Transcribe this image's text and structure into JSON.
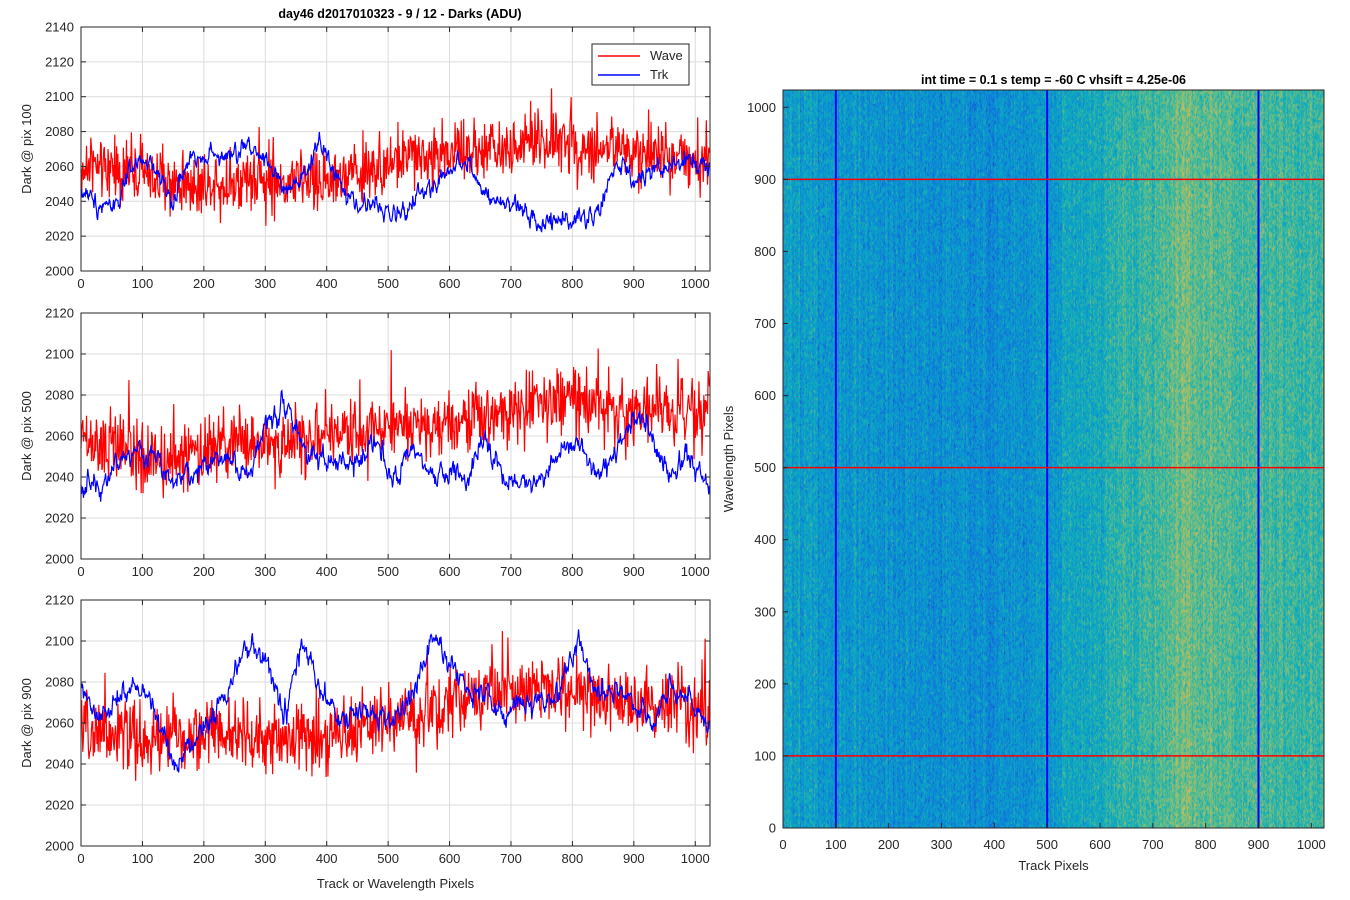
{
  "figure": {
    "title": "day46 d2017010323 - 9 / 12 - Darks (ADU)",
    "heatmap_title": "int time = 0.1 s   temp = -60 C   vhsift = 4.25e-06"
  },
  "chart_data": [
    {
      "type": "line",
      "title": "day46 d2017010323 - 9 / 12 - Darks (ADU)",
      "xlabel": "",
      "ylabel": "Dark @ pix 100",
      "xlim": [
        0,
        1024
      ],
      "ylim": [
        2000,
        2140
      ],
      "xticks": [
        0,
        100,
        200,
        300,
        400,
        500,
        600,
        700,
        800,
        900,
        1000
      ],
      "yticks": [
        2000,
        2020,
        2040,
        2060,
        2080,
        2100,
        2120,
        2140
      ],
      "grid": true,
      "legend_placement": "top-right",
      "series": [
        {
          "name": "Wave",
          "color": "#ff0000",
          "x": [
            0,
            50,
            100,
            150,
            200,
            250,
            300,
            350,
            400,
            450,
            500,
            550,
            600,
            650,
            700,
            750,
            800,
            850,
            900,
            950,
            1024
          ],
          "values": [
            2058,
            2060,
            2055,
            2050,
            2050,
            2052,
            2050,
            2052,
            2052,
            2055,
            2062,
            2066,
            2068,
            2068,
            2070,
            2074,
            2074,
            2070,
            2068,
            2068,
            2062
          ],
          "noise": 16
        },
        {
          "name": "Trk",
          "color": "#0000ff",
          "x": [
            0,
            30,
            60,
            90,
            120,
            150,
            180,
            210,
            240,
            270,
            300,
            330,
            360,
            390,
            420,
            450,
            480,
            510,
            540,
            570,
            600,
            630,
            660,
            690,
            720,
            750,
            780,
            810,
            840,
            870,
            900,
            930,
            960,
            990,
            1024
          ],
          "values": [
            2046,
            2038,
            2040,
            2062,
            2060,
            2040,
            2066,
            2068,
            2064,
            2072,
            2066,
            2045,
            2050,
            2075,
            2050,
            2036,
            2040,
            2030,
            2040,
            2048,
            2058,
            2065,
            2040,
            2038,
            2035,
            2028,
            2030,
            2032,
            2030,
            2062,
            2050,
            2058,
            2060,
            2065,
            2060
          ],
          "noise": 7
        }
      ]
    },
    {
      "type": "line",
      "xlabel": "",
      "ylabel": "Dark @ pix 500",
      "xlim": [
        0,
        1024
      ],
      "ylim": [
        2000,
        2120
      ],
      "xticks": [
        0,
        100,
        200,
        300,
        400,
        500,
        600,
        700,
        800,
        900,
        1000
      ],
      "yticks": [
        2000,
        2020,
        2040,
        2060,
        2080,
        2100,
        2120
      ],
      "grid": true,
      "series": [
        {
          "name": "Wave",
          "color": "#ff0000",
          "x": [
            0,
            50,
            100,
            150,
            200,
            250,
            300,
            350,
            400,
            450,
            500,
            550,
            600,
            650,
            700,
            750,
            800,
            850,
            900,
            950,
            1024
          ],
          "values": [
            2056,
            2054,
            2050,
            2048,
            2052,
            2056,
            2056,
            2058,
            2060,
            2062,
            2066,
            2066,
            2068,
            2070,
            2074,
            2076,
            2078,
            2074,
            2072,
            2072,
            2070
          ],
          "noise": 15
        },
        {
          "name": "Trk",
          "color": "#0000ff",
          "x": [
            0,
            30,
            60,
            90,
            120,
            150,
            180,
            210,
            240,
            270,
            300,
            330,
            360,
            390,
            420,
            450,
            480,
            510,
            540,
            570,
            600,
            630,
            660,
            690,
            720,
            750,
            780,
            810,
            840,
            870,
            900,
            930,
            960,
            990,
            1024
          ],
          "values": [
            2036,
            2036,
            2048,
            2052,
            2050,
            2040,
            2040,
            2048,
            2050,
            2040,
            2064,
            2078,
            2055,
            2050,
            2046,
            2045,
            2062,
            2036,
            2052,
            2040,
            2042,
            2040,
            2058,
            2040,
            2035,
            2040,
            2055,
            2058,
            2040,
            2050,
            2072,
            2060,
            2040,
            2050,
            2036
          ],
          "noise": 7
        }
      ]
    },
    {
      "type": "line",
      "xlabel": "Track or Wavelength Pixels",
      "ylabel": "Dark @ pix 900",
      "xlim": [
        0,
        1024
      ],
      "ylim": [
        2000,
        2120
      ],
      "xticks": [
        0,
        100,
        200,
        300,
        400,
        500,
        600,
        700,
        800,
        900,
        1000
      ],
      "yticks": [
        2000,
        2020,
        2040,
        2060,
        2080,
        2100,
        2120
      ],
      "grid": true,
      "series": [
        {
          "name": "Wave",
          "color": "#ff0000",
          "x": [
            0,
            50,
            100,
            150,
            200,
            250,
            300,
            350,
            400,
            450,
            500,
            550,
            600,
            650,
            700,
            750,
            800,
            850,
            900,
            950,
            1024
          ],
          "values": [
            2056,
            2054,
            2052,
            2052,
            2054,
            2054,
            2052,
            2052,
            2054,
            2056,
            2060,
            2064,
            2070,
            2074,
            2076,
            2078,
            2076,
            2074,
            2068,
            2068,
            2066
          ],
          "noise": 15
        },
        {
          "name": "Trk",
          "color": "#0000ff",
          "x": [
            0,
            30,
            60,
            90,
            120,
            150,
            180,
            210,
            240,
            270,
            300,
            330,
            360,
            390,
            420,
            450,
            480,
            510,
            540,
            570,
            600,
            630,
            660,
            690,
            720,
            750,
            780,
            810,
            840,
            870,
            900,
            930,
            960,
            990,
            1024
          ],
          "values": [
            2076,
            2060,
            2072,
            2078,
            2068,
            2040,
            2050,
            2062,
            2078,
            2096,
            2092,
            2062,
            2098,
            2076,
            2060,
            2064,
            2066,
            2060,
            2074,
            2100,
            2090,
            2076,
            2076,
            2060,
            2072,
            2068,
            2076,
            2100,
            2074,
            2080,
            2070,
            2060,
            2078,
            2070,
            2058
          ],
          "noise": 7
        }
      ]
    },
    {
      "type": "heatmap",
      "title": "int time = 0.1 s   temp = -60 C   vhsift = 4.25e-06",
      "xlabel": "Track Pixels",
      "ylabel": "Wavelength Pixels",
      "xlim": [
        0,
        1024
      ],
      "ylim": [
        0,
        1024
      ],
      "xticks": [
        0,
        100,
        200,
        300,
        400,
        500,
        600,
        700,
        800,
        900,
        1000
      ],
      "yticks": [
        0,
        100,
        200,
        300,
        400,
        500,
        600,
        700,
        800,
        900,
        1000
      ],
      "colormap": "parula",
      "value_range": [
        2020,
        2110
      ],
      "column_profile": {
        "x": [
          0,
          100,
          200,
          300,
          400,
          500,
          600,
          700,
          740,
          760,
          800,
          900,
          1024
        ],
        "values": [
          2052,
          2050,
          2048,
          2046,
          2046,
          2050,
          2058,
          2066,
          2072,
          2073,
          2070,
          2066,
          2064
        ]
      },
      "track_markers": {
        "x": [
          100,
          500,
          900
        ],
        "color": "#0000ff"
      },
      "wavelength_markers": {
        "y": [
          100,
          500,
          900
        ],
        "color": "#ff0000"
      }
    }
  ]
}
